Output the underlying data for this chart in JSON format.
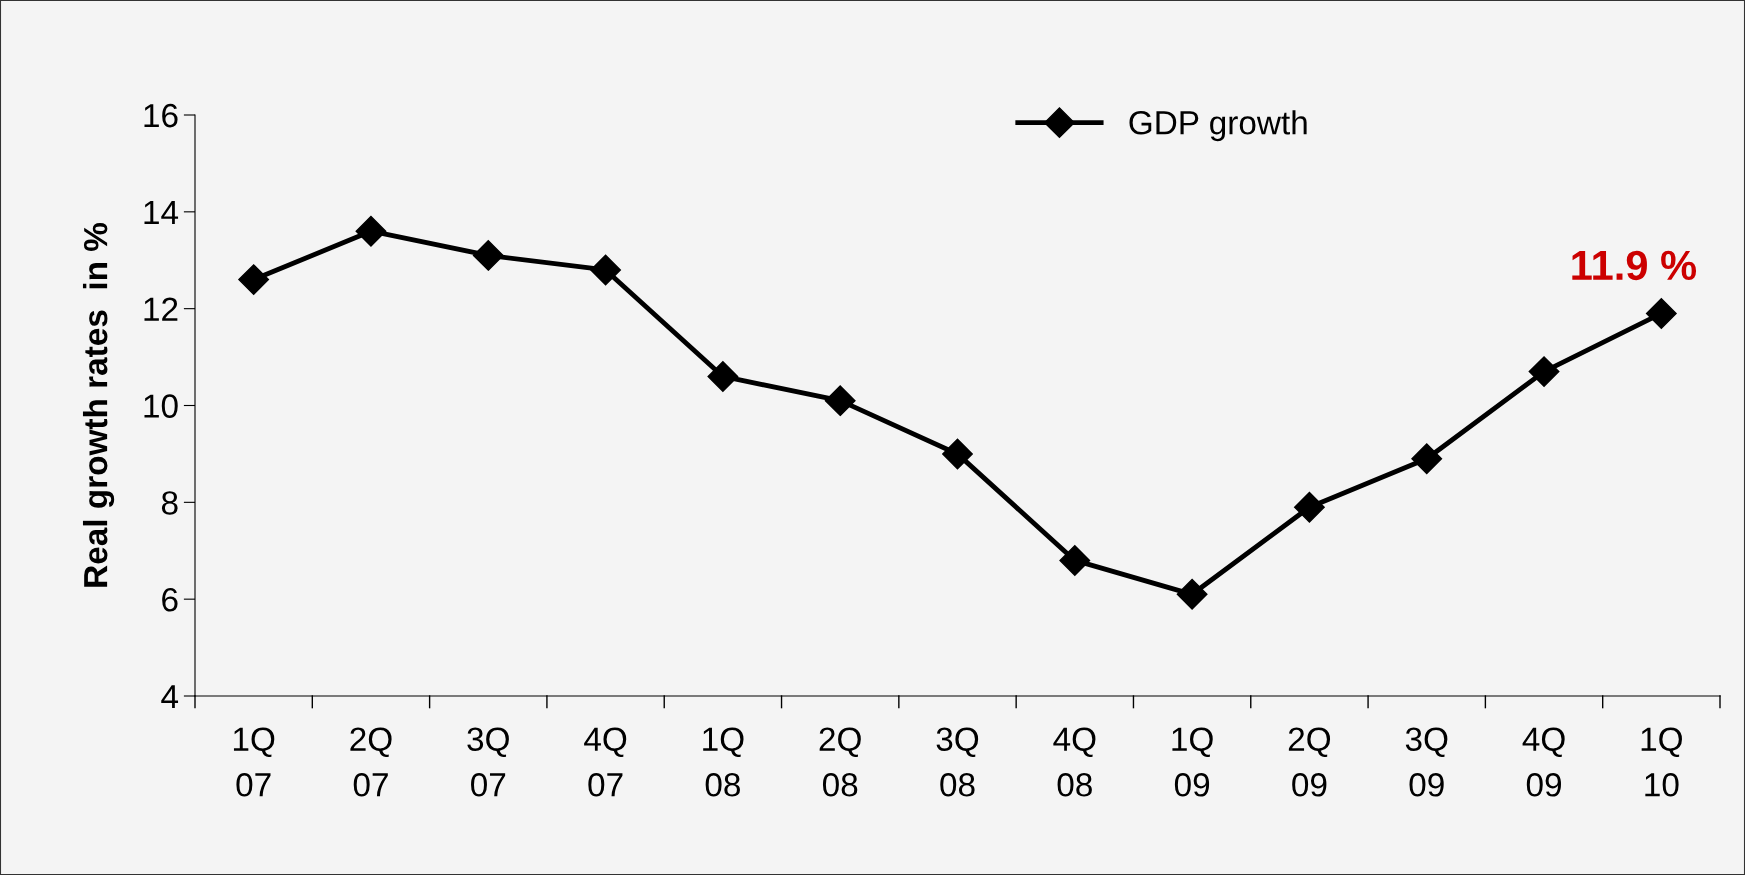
{
  "chart_data": {
    "type": "line",
    "ylabel": "Real growth rates  in %",
    "categories": [
      "1Q\n07",
      "2Q\n07",
      "3Q\n07",
      "4Q\n07",
      "1Q\n08",
      "2Q\n08",
      "3Q\n08",
      "4Q\n08",
      "1Q\n09",
      "2Q\n09",
      "3Q\n09",
      "4Q\n09",
      "1Q\n10"
    ],
    "series": [
      {
        "name": "GDP growth",
        "color": "#000000",
        "values": [
          12.6,
          13.6,
          13.1,
          12.8,
          10.6,
          10.1,
          9.0,
          6.8,
          6.1,
          7.9,
          8.9,
          10.7,
          11.9
        ]
      }
    ],
    "ylim": [
      4,
      16
    ],
    "yticks": [
      4,
      6,
      8,
      10,
      12,
      14,
      16
    ],
    "annotations": [
      "11.9 %"
    ],
    "marker": "diamond",
    "line_style": "solid",
    "legend": "top right",
    "grid": false
  }
}
